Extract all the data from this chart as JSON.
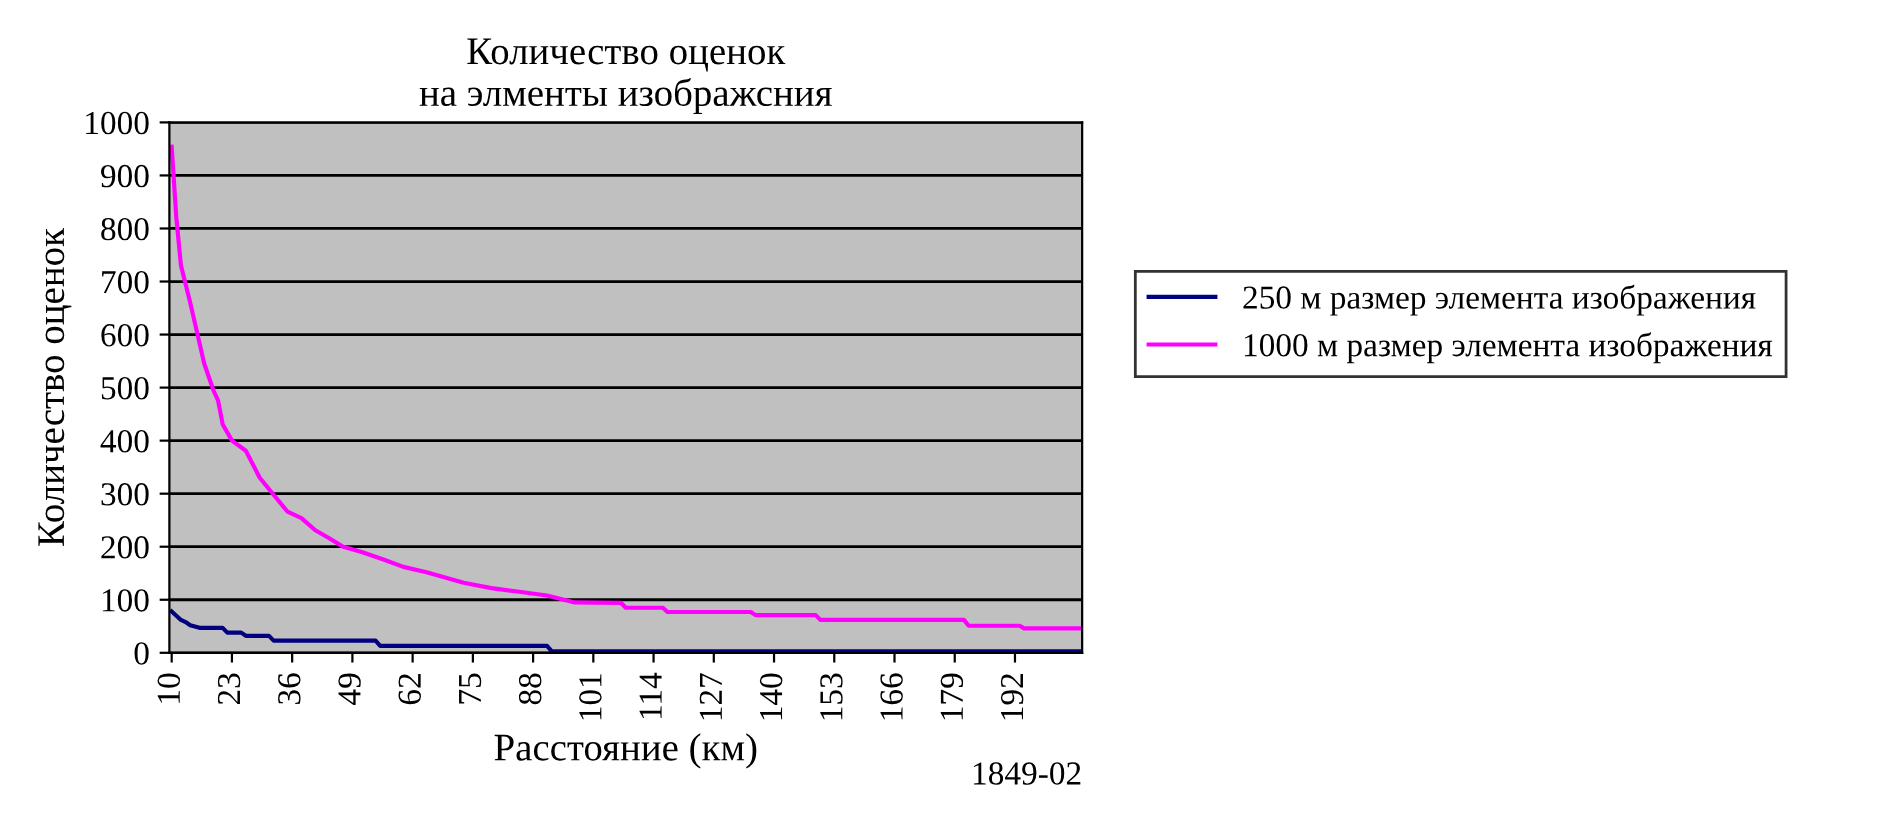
{
  "chart_data": {
    "type": "line",
    "title": "Количество оценок\nна элменты изображсния",
    "xlabel": "Расстояние (км)",
    "ylabel": "Количество оценок",
    "annotations": [
      "1849-02"
    ],
    "xlim": [
      9.5,
      206.5
    ],
    "xticks": [
      10,
      23,
      36,
      49,
      62,
      75,
      88,
      101,
      114,
      127,
      140,
      153,
      166,
      179,
      192
    ],
    "ylim": [
      0,
      1000
    ],
    "yticks": [
      0,
      100,
      200,
      300,
      400,
      500,
      600,
      700,
      800,
      900,
      1000
    ],
    "grid": "y",
    "legend": "right",
    "marker": "none",
    "line_style": "solid",
    "series": [
      {
        "name": "250 м размер элемента изображения",
        "color": "#000080",
        "x": [
          10,
          11,
          12,
          13,
          14,
          16,
          21,
          22,
          25,
          26,
          31,
          32,
          54,
          55,
          91,
          92,
          206
        ],
        "values": [
          78,
          70,
          62,
          58,
          52,
          47,
          47,
          38,
          38,
          32,
          32,
          23,
          23,
          13,
          13,
          3,
          3
        ]
      },
      {
        "name": "1000 м размер элемента изображения",
        "color": "#ff00ff",
        "x": [
          10,
          11,
          12,
          14,
          15,
          17,
          19,
          20,
          21,
          23,
          26,
          29,
          32,
          35,
          38,
          41,
          44,
          47,
          51,
          56,
          60,
          65,
          69,
          73,
          79,
          85,
          91,
          97,
          107,
          108,
          116,
          117,
          135,
          136,
          149,
          150,
          181,
          182,
          193,
          194,
          206
        ],
        "values": [
          954,
          820,
          730,
          660,
          622,
          546,
          495,
          476,
          431,
          400,
          381,
          330,
          298,
          266,
          254,
          231,
          216,
          200,
          190,
          175,
          162,
          152,
          142,
          132,
          122,
          115,
          108,
          95,
          94,
          85,
          85,
          77,
          77,
          71,
          71,
          62,
          62,
          51,
          51,
          46,
          46
        ]
      }
    ]
  }
}
